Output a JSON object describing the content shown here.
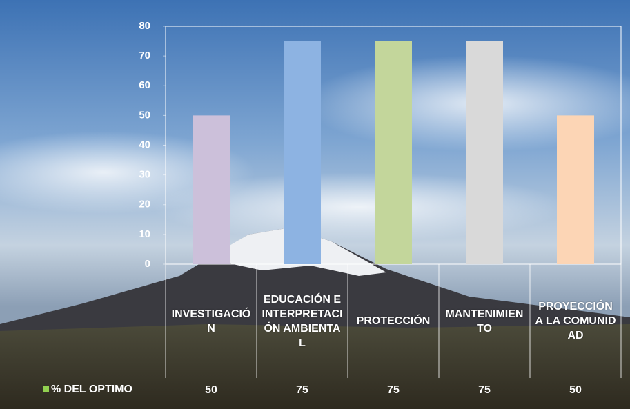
{
  "chart_data": {
    "type": "bar",
    "categories": [
      "INVESTIGACIÓN",
      "EDUCACIÓN E INTERPRETACIÓN AMBIENTAL",
      "PROTECCIÓN",
      "MANTENIMIENTO",
      "PROYECCIÓN A LA COMUNIDAD"
    ],
    "series": [
      {
        "name": "% DEL OPTIMO",
        "color": "#92d050",
        "colors": [
          "#ccc0da",
          "#8db3e2",
          "#c3d69b",
          "#d9d9d9",
          "#fcd5b5"
        ],
        "values": [
          50,
          75,
          75,
          75,
          50
        ]
      }
    ],
    "ylim": [
      0,
      80
    ],
    "yticks": [
      0,
      10,
      20,
      30,
      40,
      50,
      60,
      70,
      80
    ],
    "grid": false
  }
}
